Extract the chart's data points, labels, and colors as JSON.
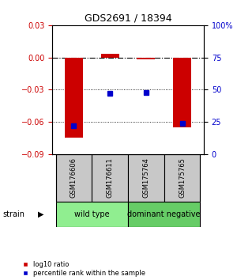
{
  "title": "GDS2691 / 18394",
  "samples": [
    "GSM176606",
    "GSM176611",
    "GSM175764",
    "GSM175765"
  ],
  "log10_ratio": [
    -0.075,
    0.003,
    -0.002,
    -0.065
  ],
  "percentile_rank": [
    22,
    47,
    48,
    24
  ],
  "groups": [
    {
      "label": "wild type",
      "color": "#90EE90",
      "start": 0,
      "end": 2
    },
    {
      "label": "dominant negative",
      "color": "#66CC66",
      "start": 2,
      "end": 4
    }
  ],
  "group_row_label": "strain",
  "ylim_left": [
    -0.09,
    0.03
  ],
  "ylim_right": [
    0,
    100
  ],
  "yticks_left": [
    -0.09,
    -0.06,
    -0.03,
    0,
    0.03
  ],
  "yticks_right": [
    0,
    25,
    50,
    75,
    100
  ],
  "ytick_labels_right": [
    "0",
    "25",
    "50",
    "75",
    "100%"
  ],
  "hline_y": 0,
  "dotted_lines": [
    -0.03,
    -0.06
  ],
  "bar_color": "#CC0000",
  "scatter_color": "#0000CC",
  "bar_width": 0.5,
  "background_color": "#ffffff",
  "left_tick_color": "#CC0000",
  "right_tick_color": "#0000CC",
  "sample_box_color": "#C8C8C8",
  "legend_items": [
    {
      "label": "log10 ratio",
      "color": "#CC0000"
    },
    {
      "label": "percentile rank within the sample",
      "color": "#0000CC"
    }
  ]
}
